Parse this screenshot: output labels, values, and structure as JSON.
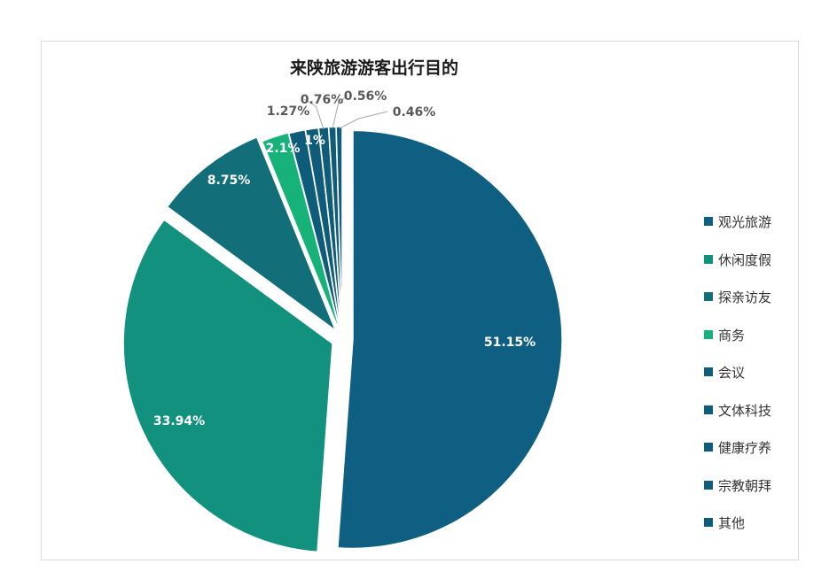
{
  "chart_data": {
    "type": "pie",
    "title": "来陕旅游游客出行目的",
    "categories": [
      "观光旅游",
      "休闲度假",
      "探亲访友",
      "商务",
      "会议",
      "文体科技",
      "健康疗养",
      "宗教朝拜",
      "其他"
    ],
    "values": [
      51.15,
      33.94,
      8.75,
      2.1,
      1.27,
      1,
      0.76,
      0.56,
      0.46
    ],
    "data_labels": [
      "51.15%",
      "33.94%",
      "8.75%",
      "2.1%",
      "1.27%",
      "1%",
      "0.76%",
      "0.56%",
      "0.46%"
    ],
    "colors": [
      "#0f5f82",
      "#11917e",
      "#126f7a",
      "#17b17a",
      "#0e5c7a",
      "#0e5c7a",
      "#0e5c7a",
      "#0e5c7a",
      "#0e5c7a"
    ],
    "legend_position": "right",
    "exploded": true
  }
}
